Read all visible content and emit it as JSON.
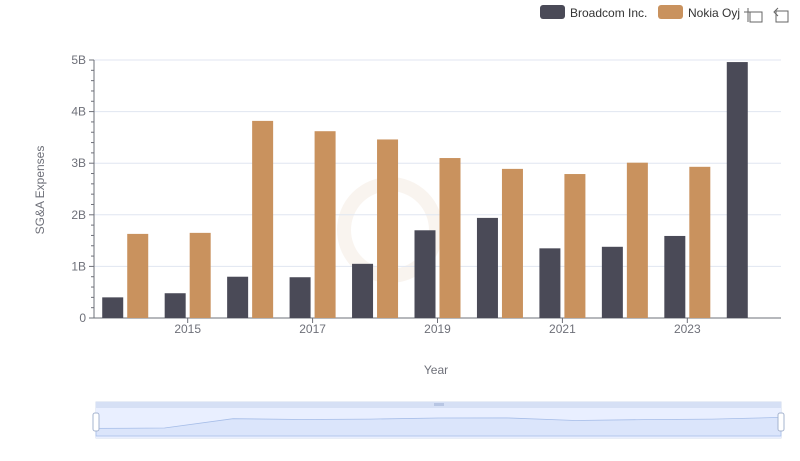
{
  "chart_data": {
    "type": "bar",
    "categories": [
      "2014",
      "2015",
      "2016",
      "2017",
      "2018",
      "2019",
      "2020",
      "2021",
      "2022",
      "2023",
      "2024"
    ],
    "x_tick_labels": [
      "2015",
      "2017",
      "2019",
      "2021",
      "2023"
    ],
    "series": [
      {
        "name": "Broadcom Inc.",
        "color": "#4a4a57",
        "values": [
          0.4,
          0.48,
          0.8,
          0.79,
          1.05,
          1.7,
          1.94,
          1.35,
          1.38,
          1.59,
          4.96
        ]
      },
      {
        "name": "Nokia Oyj",
        "color": "#c9925e",
        "values": [
          1.63,
          1.65,
          3.82,
          3.62,
          3.46,
          3.1,
          2.89,
          2.79,
          3.01,
          2.93,
          null
        ]
      }
    ],
    "unit": "B",
    "ylim": [
      0,
      5
    ],
    "y_tick_values": [
      0,
      1,
      2,
      3,
      4,
      5
    ],
    "y_tick_labels": [
      "0",
      "1B",
      "2B",
      "3B",
      "4B",
      "5B"
    ],
    "xlabel": "Year",
    "ylabel": "SG&A Expenses",
    "grid": true,
    "legend_position": "top-right"
  },
  "toolbox": {
    "icons": [
      "zoom-icon",
      "zoom-reset-icon"
    ]
  },
  "datazoom": {
    "range_start": 0,
    "range_end": 100
  }
}
